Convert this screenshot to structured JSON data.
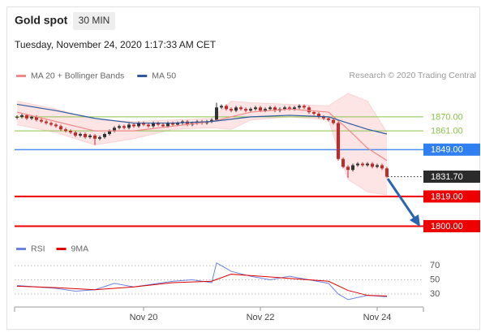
{
  "chart_data": [
    {
      "type": "candlestick",
      "title": "Gold spot",
      "timeframe": "30 MIN",
      "subtitle": "Tuesday, November 24, 2020 1:17:33 AM CET",
      "source": "Research © 2020 Trading Central",
      "ylim": [
        1794,
        1885
      ],
      "up_color": "#333333",
      "down_color": "#c62828",
      "open": [
        1869.5,
        1870,
        1871,
        1869,
        1870,
        1868,
        1867,
        1866,
        1865,
        1864,
        1862,
        1861,
        1860,
        1858,
        1859,
        1857,
        1858,
        1856,
        1857,
        1859,
        1861,
        1863,
        1864,
        1863,
        1865,
        1864,
        1866,
        1865,
        1864,
        1866,
        1865,
        1864,
        1866,
        1865,
        1866,
        1867,
        1865,
        1866,
        1867,
        1866,
        1867,
        1868,
        1876,
        1877,
        1875,
        1874,
        1876,
        1875,
        1874,
        1875,
        1876,
        1874,
        1875,
        1876,
        1874,
        1875,
        1876,
        1875,
        1876,
        1877,
        1876,
        1873,
        1872,
        1870,
        1869,
        1868,
        1866,
        1843,
        1838,
        1836,
        1839,
        1840,
        1839,
        1840,
        1838,
        1839,
        1837,
        null,
        null,
        null,
        null,
        null,
        null,
        null
      ],
      "high": [
        1871,
        1872,
        1872,
        1871,
        1871,
        1869,
        1868,
        1867,
        1866,
        1865,
        1863,
        1862,
        1861,
        1860,
        1860,
        1859,
        1859,
        1858,
        1860,
        1862,
        1864,
        1865,
        1865,
        1866,
        1866,
        1867,
        1867,
        1866,
        1867,
        1867,
        1866,
        1867,
        1867,
        1867,
        1868,
        1868,
        1867,
        1868,
        1868,
        1868,
        1869,
        1879,
        1878,
        1878,
        1876,
        1877,
        1877,
        1876,
        1876,
        1877,
        1877,
        1876,
        1877,
        1877,
        1876,
        1877,
        1877,
        1877,
        1878,
        1878,
        1877,
        1874,
        1873,
        1871,
        1870,
        1869,
        1867,
        1844,
        1839,
        1840,
        1841,
        1841,
        1841,
        1841,
        1840,
        1840,
        1838,
        null,
        null,
        null,
        null,
        null,
        null,
        null
      ],
      "low": [
        1868.5,
        1869,
        1868,
        1868,
        1867,
        1866,
        1865,
        1864,
        1863,
        1861,
        1860,
        1859,
        1857,
        1857,
        1856,
        1856,
        1852,
        1855,
        1856,
        1858,
        1860,
        1862,
        1862,
        1862,
        1863,
        1863,
        1864,
        1863,
        1863,
        1864,
        1863,
        1863,
        1864,
        1864,
        1865,
        1864,
        1864,
        1865,
        1865,
        1865,
        1866,
        1867,
        1875,
        1874,
        1873,
        1873,
        1874,
        1873,
        1873,
        1874,
        1873,
        1873,
        1874,
        1873,
        1873,
        1874,
        1874,
        1874,
        1875,
        1875,
        1872,
        1871,
        1869,
        1868,
        1867,
        1865,
        1842,
        1837,
        1831,
        1835,
        1838,
        1838,
        1838,
        1837,
        1837,
        1836,
        1830.7,
        null,
        null,
        null,
        null,
        null,
        null,
        null
      ],
      "close": [
        1870,
        1871,
        1869,
        1870,
        1868,
        1867,
        1866,
        1865,
        1864,
        1862,
        1861,
        1860,
        1858,
        1859,
        1857,
        1858,
        1856,
        1857,
        1859,
        1861,
        1863,
        1864,
        1863,
        1865,
        1864,
        1866,
        1865,
        1864,
        1866,
        1865,
        1864,
        1866,
        1865,
        1866,
        1867,
        1865,
        1866,
        1867,
        1866,
        1867,
        1868,
        1876,
        1877,
        1875,
        1874,
        1876,
        1875,
        1874,
        1875,
        1876,
        1874,
        1875,
        1876,
        1874,
        1875,
        1876,
        1875,
        1876,
        1877,
        1876,
        1873,
        1872,
        1870,
        1869,
        1868,
        1866,
        1843,
        1838,
        1836,
        1839,
        1840,
        1839,
        1840,
        1838,
        1839,
        1837,
        1831.7,
        null,
        null,
        null,
        null,
        null,
        null,
        null
      ],
      "bands": {
        "color": "#fbd3d3",
        "x": [
          0,
          8,
          16,
          24,
          32,
          40,
          44,
          48,
          56,
          64,
          68,
          72,
          76
        ],
        "upper": [
          1880,
          1875,
          1868,
          1867,
          1868,
          1869,
          1880,
          1879,
          1878,
          1877,
          1885,
          1880,
          1860
        ],
        "lower": [
          1865,
          1860,
          1852,
          1856,
          1862,
          1863,
          1862,
          1868,
          1870,
          1868,
          1830,
          1822,
          1820
        ]
      },
      "series": [
        {
          "name": "MA 20 + Bollinger Bands",
          "color": "#f08a8a",
          "x": [
            0,
            8,
            16,
            24,
            32,
            40,
            48,
            56,
            64,
            68,
            72,
            76
          ],
          "values": [
            1873,
            1867,
            1861,
            1861,
            1864,
            1867,
            1873,
            1875,
            1873,
            1862,
            1850,
            1842
          ]
        },
        {
          "name": "MA 50",
          "color": "#2e5a9c",
          "x": [
            0,
            8,
            16,
            24,
            32,
            40,
            48,
            56,
            64,
            68,
            72,
            76
          ],
          "values": [
            1878,
            1874,
            1869,
            1866,
            1866,
            1867,
            1870,
            1871,
            1870,
            1866,
            1862,
            1859
          ]
        }
      ],
      "levels": [
        {
          "value": 1870,
          "label": "1870.00",
          "color": "#8bc34a",
          "box": false,
          "line": "solid",
          "line_width": 1
        },
        {
          "value": 1861,
          "label": "1861.00",
          "color": "#8bc34a",
          "box": false,
          "line": "solid",
          "line_width": 1
        },
        {
          "value": 1849,
          "label": "1849.00",
          "color": "#2f7ff0",
          "box": true,
          "line": "solid",
          "line_width": 1.2
        },
        {
          "value": 1831.7,
          "label": "1831.70",
          "color": "#2b2b2b",
          "box": true,
          "line": "dotted",
          "line_width": 1
        },
        {
          "value": 1819,
          "label": "1819.00",
          "color": "#ee0000",
          "box": true,
          "line": "solid",
          "line_width": 2
        },
        {
          "value": 1800,
          "label": "1800.00",
          "color": "#ee0000",
          "box": true,
          "line": "solid",
          "line_width": 2
        }
      ]
    },
    {
      "type": "line",
      "ylim": [
        15,
        100
      ],
      "yticks": [
        70,
        50,
        30
      ],
      "categories": [
        null,
        null,
        null,
        null,
        null,
        null,
        null,
        null,
        null,
        null,
        null,
        null,
        null,
        null,
        null,
        null,
        null,
        null,
        null,
        null,
        null,
        null,
        null,
        null,
        null,
        null,
        "Nov 20",
        null,
        null,
        null,
        null,
        null,
        null,
        null,
        null,
        null,
        null,
        null,
        null,
        null,
        null,
        null,
        null,
        null,
        null,
        null,
        null,
        null,
        null,
        null,
        "Nov 22",
        null,
        null,
        null,
        null,
        null,
        null,
        null,
        null,
        null,
        null,
        null,
        null,
        null,
        null,
        null,
        null,
        null,
        null,
        null,
        null,
        null,
        null,
        null,
        "Nov 24",
        null,
        null,
        null,
        null,
        null,
        null,
        null,
        null,
        null
      ],
      "series": [
        {
          "name": "RSI",
          "color": "#6b84e0",
          "x": [
            0,
            4,
            8,
            12,
            16,
            20,
            24,
            28,
            32,
            36,
            40,
            41,
            44,
            48,
            52,
            56,
            60,
            64,
            66,
            68,
            72,
            76
          ],
          "values": [
            42,
            40,
            38,
            34,
            36,
            45,
            40,
            44,
            48,
            50,
            46,
            74,
            62,
            55,
            50,
            55,
            50,
            45,
            30,
            22,
            28,
            26
          ]
        },
        {
          "name": "9MA",
          "color": "#e00000",
          "x": [
            0,
            8,
            16,
            24,
            32,
            40,
            44,
            48,
            56,
            64,
            68,
            72,
            76
          ],
          "values": [
            41,
            39,
            36,
            40,
            46,
            48,
            58,
            56,
            52,
            48,
            35,
            28,
            27
          ]
        }
      ]
    }
  ]
}
